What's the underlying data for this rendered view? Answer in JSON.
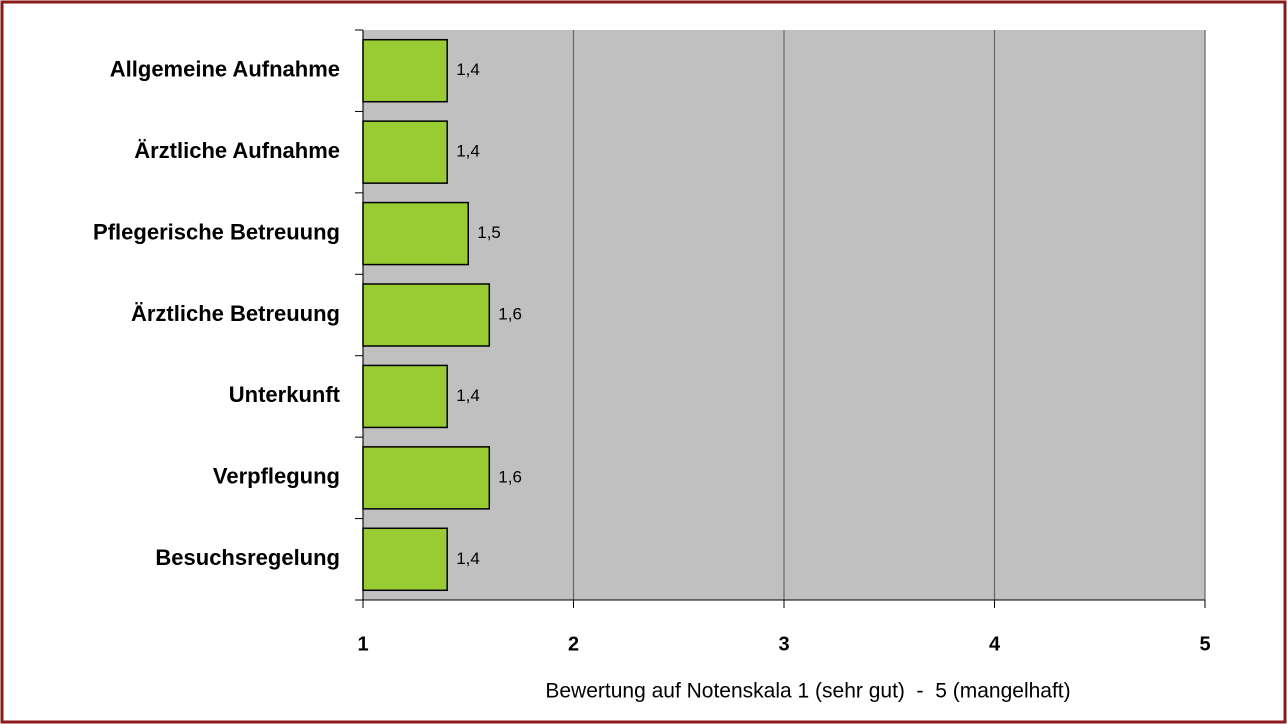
{
  "chart_data": {
    "type": "bar",
    "orientation": "horizontal",
    "categories": [
      "Allgemeine Aufnahme",
      "Ärztliche Aufnahme",
      "Pflegerische Betreuung",
      "Ärztliche Betreuung",
      "Unterkunft",
      "Verpflegung",
      "Besuchsregelung"
    ],
    "values": [
      1.4,
      1.4,
      1.5,
      1.6,
      1.4,
      1.6,
      1.4
    ],
    "value_labels": [
      "1,4",
      "1,4",
      "1,5",
      "1,6",
      "1,4",
      "1,6",
      "1,4"
    ],
    "color": "#99cc33",
    "xlim": [
      1,
      5
    ],
    "xticks": [
      1,
      2,
      3,
      4,
      5
    ],
    "grid": true,
    "x_label": "Bewertung auf Notenskala 1 (sehr gut)  -  5 (mangelhaft)"
  }
}
